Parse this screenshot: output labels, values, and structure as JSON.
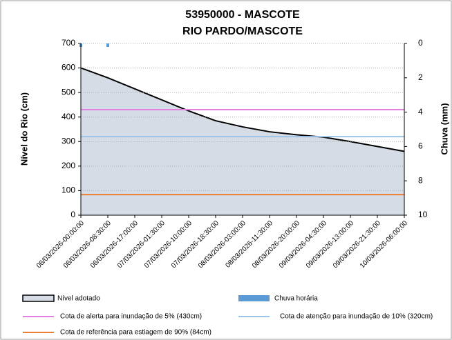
{
  "chart_data": {
    "type": "area",
    "title": [
      "53950000 - MASCOTE",
      "RIO PARDO/MASCOTE"
    ],
    "ylabel": "Nível do Rio  (cm)",
    "y2label": "Chuva (mm)",
    "categories": [
      "06/03/2026-00:00:00",
      "06/03/2026-08:30:00",
      "06/03/2026-17:00:00",
      "07/03/2026-01:30:00",
      "07/03/2026-10:00:00",
      "07/03/2026-18:30:00",
      "08/03/2026-03:00:00",
      "08/03/2026-11:30:00",
      "08/03/2026-20:00:00",
      "09/03/2026-04:30:00",
      "09/03/2026-13:00:00",
      "09/03/2026-21:30:00",
      "10/03/2026-06:00:00"
    ],
    "series": [
      {
        "name": "Nível adotado",
        "type": "area",
        "color": "#d6dce5",
        "line_color": "#000000",
        "values": [
          600,
          560,
          515,
          470,
          425,
          385,
          360,
          340,
          328,
          318,
          300,
          280,
          260
        ]
      },
      {
        "name": "Chuva horária",
        "type": "bar",
        "axis": "y2",
        "color": "#5b9bd5",
        "values": [
          0.2,
          0.2,
          null,
          null,
          null,
          null,
          null,
          null,
          null,
          null,
          null,
          null,
          null
        ]
      }
    ],
    "thresholds": [
      {
        "name": "Cota de alerta para inundação de 5% (430cm)",
        "value": 430,
        "color": "#e37fe3"
      },
      {
        "name": "Cota de atenção para inundação de 10% (320cm)",
        "value": 320,
        "color": "#9dc3e6"
      },
      {
        "name": "Cota de referência para estiagem de 90% (84cm)",
        "value": 84,
        "color": "#ed7d31"
      }
    ],
    "ylim": [
      0,
      700
    ],
    "yticks": [
      0,
      100,
      200,
      300,
      400,
      500,
      600,
      700
    ],
    "y2lim": [
      0,
      10
    ],
    "y2ticks": [
      0,
      2,
      4,
      6,
      8,
      10
    ],
    "y2_inverted": true,
    "grid": true
  }
}
